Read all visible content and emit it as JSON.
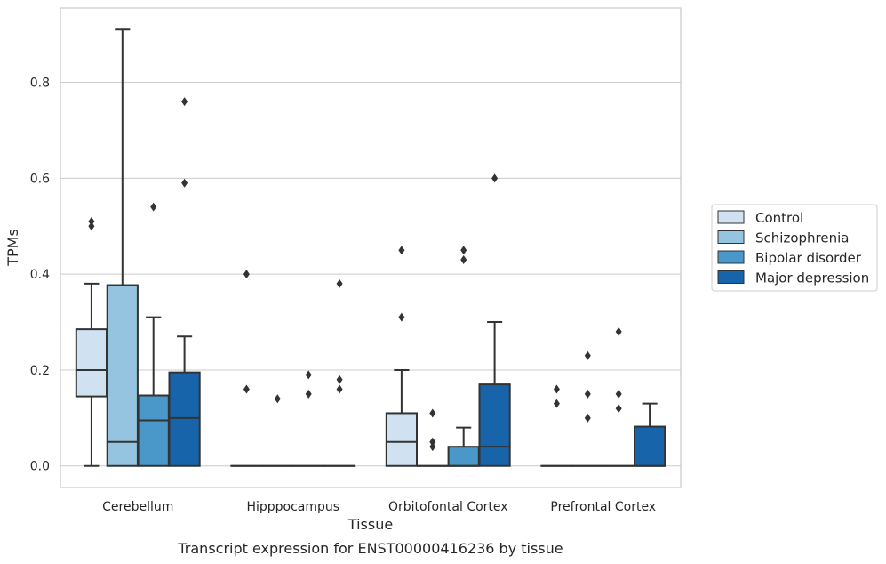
{
  "chart_data": {
    "type": "box",
    "title": "",
    "caption": "Transcript expression for ENST00000416236 by tissue",
    "xlabel": "Tissue",
    "ylabel": "TPMs",
    "ylim": [
      -0.045,
      0.955
    ],
    "yticks": [
      0.0,
      0.2,
      0.4,
      0.6,
      0.8
    ],
    "ytick_labels": [
      "0.0",
      "0.2",
      "0.4",
      "0.6",
      "0.8"
    ],
    "grid": "horizontal",
    "legend_position": "right",
    "categories": [
      "Cerebellum",
      "Hipppocampus",
      "Orbitofontal Cortex",
      "Prefrontal Cortex"
    ],
    "series": [
      {
        "name": "Control",
        "color": "#d0e1f2",
        "boxes": [
          {
            "q1": 0.145,
            "median": 0.2,
            "q3": 0.285,
            "whisker_low": 0.0,
            "whisker_high": 0.38,
            "outliers": [
              0.5,
              0.51
            ]
          },
          {
            "q1": 0.0,
            "median": 0.0,
            "q3": 0.0,
            "whisker_low": 0.0,
            "whisker_high": 0.0,
            "outliers": [
              0.16,
              0.4
            ]
          },
          {
            "q1": 0.0,
            "median": 0.05,
            "q3": 0.11,
            "whisker_low": 0.0,
            "whisker_high": 0.2,
            "outliers": [
              0.31,
              0.45
            ]
          },
          {
            "q1": 0.0,
            "median": 0.0,
            "q3": 0.0,
            "whisker_low": 0.0,
            "whisker_high": 0.0,
            "outliers": [
              0.13,
              0.16
            ]
          }
        ]
      },
      {
        "name": "Schizophrenia",
        "color": "#94c4df",
        "boxes": [
          {
            "q1": 0.0,
            "median": 0.05,
            "q3": 0.377,
            "whisker_low": 0.0,
            "whisker_high": 0.91,
            "outliers": []
          },
          {
            "q1": 0.0,
            "median": 0.0,
            "q3": 0.0,
            "whisker_low": 0.0,
            "whisker_high": 0.0,
            "outliers": [
              0.14
            ]
          },
          {
            "q1": 0.0,
            "median": 0.0,
            "q3": 0.0,
            "whisker_low": 0.0,
            "whisker_high": 0.0,
            "outliers": [
              0.04,
              0.05,
              0.11
            ]
          },
          {
            "q1": 0.0,
            "median": 0.0,
            "q3": 0.0,
            "whisker_low": 0.0,
            "whisker_high": 0.0,
            "outliers": [
              0.1,
              0.15,
              0.23
            ]
          }
        ]
      },
      {
        "name": "Bipolar disorder",
        "color": "#4a98c9",
        "boxes": [
          {
            "q1": 0.0,
            "median": 0.095,
            "q3": 0.147,
            "whisker_low": 0.0,
            "whisker_high": 0.31,
            "outliers": [
              0.54
            ]
          },
          {
            "q1": 0.0,
            "median": 0.0,
            "q3": 0.0,
            "whisker_low": 0.0,
            "whisker_high": 0.0,
            "outliers": [
              0.15,
              0.19
            ]
          },
          {
            "q1": 0.0,
            "median": 0.0,
            "q3": 0.04,
            "whisker_low": 0.0,
            "whisker_high": 0.08,
            "outliers": [
              0.43,
              0.45
            ]
          },
          {
            "q1": 0.0,
            "median": 0.0,
            "q3": 0.0,
            "whisker_low": 0.0,
            "whisker_high": 0.0,
            "outliers": [
              0.12,
              0.15,
              0.28
            ]
          }
        ]
      },
      {
        "name": "Major depression",
        "color": "#1764ab",
        "boxes": [
          {
            "q1": 0.0,
            "median": 0.1,
            "q3": 0.195,
            "whisker_low": 0.0,
            "whisker_high": 0.27,
            "outliers": [
              0.59,
              0.76
            ]
          },
          {
            "q1": 0.0,
            "median": 0.0,
            "q3": 0.0,
            "whisker_low": 0.0,
            "whisker_high": 0.0,
            "outliers": [
              0.16,
              0.18,
              0.38
            ]
          },
          {
            "q1": 0.0,
            "median": 0.04,
            "q3": 0.17,
            "whisker_low": 0.0,
            "whisker_high": 0.3,
            "outliers": [
              0.6
            ]
          },
          {
            "q1": 0.0,
            "median": 0.0,
            "q3": 0.082,
            "whisker_low": 0.0,
            "whisker_high": 0.13,
            "outliers": []
          }
        ]
      }
    ]
  }
}
